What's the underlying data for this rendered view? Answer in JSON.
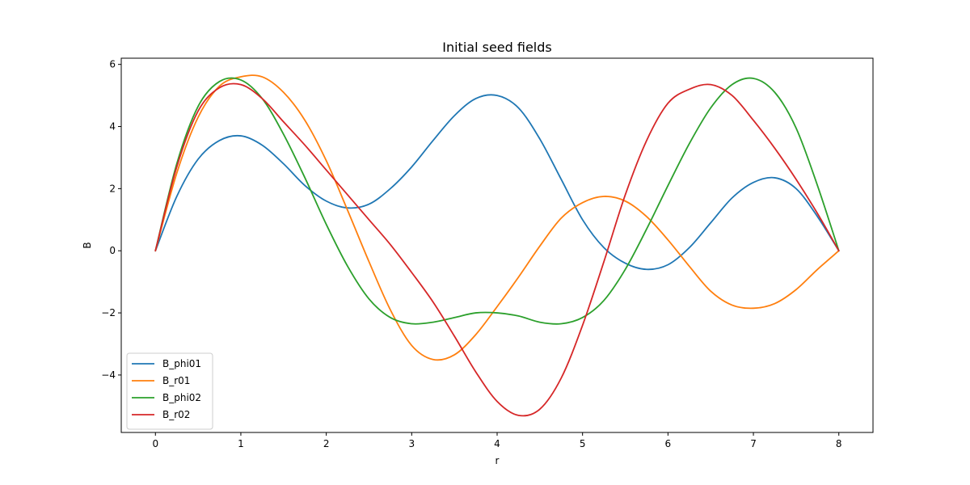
{
  "chart_data": {
    "type": "line",
    "title": "Initial seed fields",
    "xlabel": "r",
    "ylabel": "B",
    "xlim": [
      -0.4,
      8.4
    ],
    "ylim": [
      -5.85,
      6.2
    ],
    "xticks": [
      0,
      1,
      2,
      3,
      4,
      5,
      6,
      7,
      8
    ],
    "xtick_labels": [
      "0",
      "1",
      "2",
      "3",
      "4",
      "5",
      "6",
      "7",
      "8"
    ],
    "yticks": [
      -4,
      -2,
      0,
      2,
      4,
      6
    ],
    "ytick_labels": [
      "−4",
      "−2",
      "0",
      "2",
      "4",
      "6"
    ],
    "grid": false,
    "legend_position": "lower-left",
    "x": [
      0,
      0.25,
      0.5,
      0.75,
      1.0,
      1.25,
      1.5,
      1.75,
      2.0,
      2.25,
      2.5,
      2.75,
      3.0,
      3.25,
      3.5,
      3.75,
      4.0,
      4.25,
      4.5,
      4.75,
      5.0,
      5.25,
      5.5,
      5.75,
      6.0,
      6.25,
      6.5,
      6.75,
      7.0,
      7.25,
      7.5,
      7.75,
      8.0
    ],
    "series": [
      {
        "name": "B_phi01",
        "color": "#1f77b4",
        "values": [
          0,
          1.75,
          2.95,
          3.55,
          3.7,
          3.4,
          2.8,
          2.1,
          1.6,
          1.38,
          1.5,
          2.0,
          2.7,
          3.55,
          4.35,
          4.9,
          5.0,
          4.6,
          3.6,
          2.3,
          1.0,
          0.1,
          -0.4,
          -0.6,
          -0.45,
          0.1,
          0.9,
          1.7,
          2.2,
          2.35,
          2.0,
          1.1,
          0
        ]
      },
      {
        "name": "B_r01",
        "color": "#ff7f0e",
        "values": [
          0,
          2.5,
          4.3,
          5.3,
          5.6,
          5.6,
          5.1,
          4.2,
          2.9,
          1.3,
          -0.35,
          -1.9,
          -3.05,
          -3.5,
          -3.35,
          -2.7,
          -1.8,
          -0.85,
          0.15,
          1.05,
          1.55,
          1.75,
          1.6,
          1.1,
          0.35,
          -0.5,
          -1.3,
          -1.75,
          -1.85,
          -1.7,
          -1.25,
          -0.6,
          0
        ]
      },
      {
        "name": "B_phi02",
        "color": "#2ca02c",
        "values": [
          0,
          2.8,
          4.65,
          5.45,
          5.5,
          4.9,
          3.75,
          2.35,
          0.85,
          -0.5,
          -1.55,
          -2.15,
          -2.35,
          -2.3,
          -2.15,
          -2.0,
          -2.0,
          -2.1,
          -2.3,
          -2.35,
          -2.15,
          -1.6,
          -0.6,
          0.7,
          2.1,
          3.45,
          4.6,
          5.35,
          5.55,
          5.1,
          3.95,
          2.1,
          0
        ]
      },
      {
        "name": "B_r02",
        "color": "#d62728",
        "values": [
          0,
          2.7,
          4.5,
          5.25,
          5.35,
          4.9,
          4.15,
          3.4,
          2.6,
          1.8,
          1.0,
          0.2,
          -0.7,
          -1.65,
          -2.75,
          -3.9,
          -4.85,
          -5.3,
          -5.1,
          -4.1,
          -2.4,
          -0.35,
          1.8,
          3.55,
          4.75,
          5.2,
          5.35,
          5.0,
          4.2,
          3.3,
          2.3,
          1.2,
          0
        ]
      }
    ]
  }
}
